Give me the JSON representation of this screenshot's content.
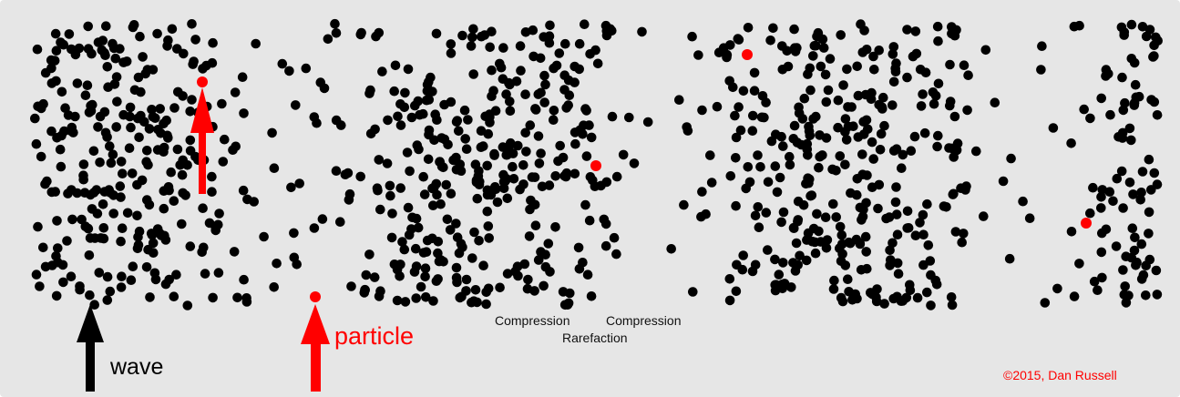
{
  "labels": {
    "compression_left": "Compression",
    "compression_right": "Compression",
    "rarefaction": "Rarefaction",
    "wave": "wave",
    "particle": "particle",
    "copyright": "©2015, Dan Russell"
  },
  "colors": {
    "background": "#e6e6e6",
    "particle": "#000000",
    "highlight": "#ff0000",
    "wave_arrow": "#000000",
    "particle_arrow": "#ff0000"
  },
  "diagram": {
    "type": "longitudinal-wave-particle-field",
    "particle_count_approx": 1100,
    "highlighted_particles": 5,
    "wave_direction": "up",
    "particle_motion": "up"
  }
}
